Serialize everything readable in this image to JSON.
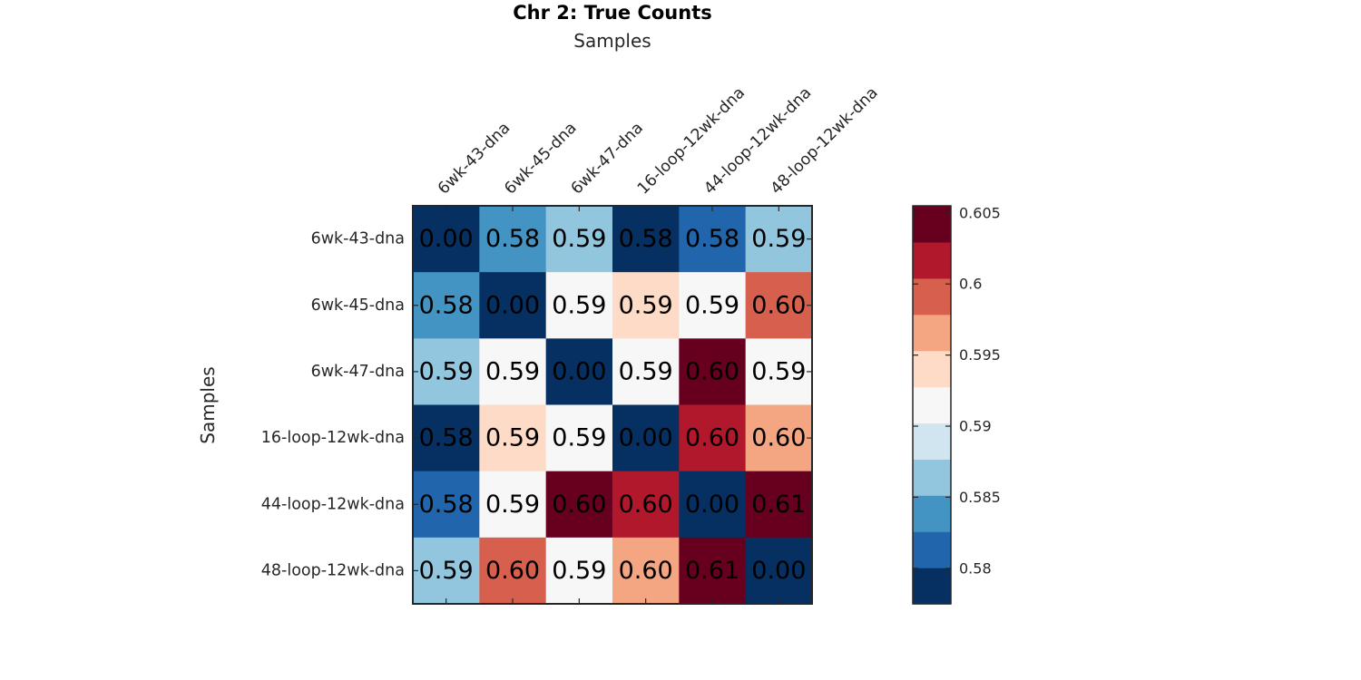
{
  "chart_data": {
    "type": "heatmap",
    "title": "Chr 2: True Counts",
    "xlabel": "Samples",
    "ylabel": "Samples",
    "x_categories": [
      "6wk-43-dna",
      "6wk-45-dna",
      "6wk-47-dna",
      "16-loop-12wk-dna",
      "44-loop-12wk-dna",
      "48-loop-12wk-dna"
    ],
    "y_categories": [
      "6wk-43-dna",
      "6wk-45-dna",
      "6wk-47-dna",
      "16-loop-12wk-dna",
      "44-loop-12wk-dna",
      "48-loop-12wk-dna"
    ],
    "values": [
      [
        0.0,
        0.583,
        0.587,
        0.578,
        0.581,
        0.587
      ],
      [
        0.583,
        0.0,
        0.591,
        0.593,
        0.591,
        0.6
      ],
      [
        0.587,
        0.591,
        0.0,
        0.591,
        0.605,
        0.591
      ],
      [
        0.578,
        0.593,
        0.591,
        0.0,
        0.602,
        0.597
      ],
      [
        0.581,
        0.591,
        0.605,
        0.602,
        0.0,
        0.605
      ],
      [
        0.587,
        0.6,
        0.591,
        0.597,
        0.605,
        0.0
      ]
    ],
    "cell_labels": [
      [
        "0.00",
        "0.58",
        "0.59",
        "0.58",
        "0.58",
        "0.59"
      ],
      [
        "0.58",
        "0.00",
        "0.59",
        "0.59",
        "0.59",
        "0.60"
      ],
      [
        "0.59",
        "0.59",
        "0.00",
        "0.59",
        "0.60",
        "0.59"
      ],
      [
        "0.58",
        "0.59",
        "0.59",
        "0.00",
        "0.60",
        "0.60"
      ],
      [
        "0.58",
        "0.59",
        "0.60",
        "0.60",
        "0.00",
        "0.61"
      ],
      [
        "0.59",
        "0.60",
        "0.59",
        "0.60",
        "0.61",
        "0.00"
      ]
    ],
    "colorbar": {
      "range": [
        0.5775,
        0.6055
      ],
      "ticks": [
        0.58,
        0.585,
        0.59,
        0.595,
        0.6,
        0.605
      ],
      "tick_labels": [
        "0.58",
        "0.585",
        "0.59",
        "0.595",
        "0.6",
        "0.605"
      ],
      "colors_low_to_high": [
        "#053061",
        "#2166ac",
        "#4393c3",
        "#92c5de",
        "#d1e5f0",
        "#f7f7f7",
        "#fddbc7",
        "#f4a582",
        "#d6604d",
        "#b2182b",
        "#67001f"
      ]
    },
    "grid": false,
    "legend": "colorbar-right"
  }
}
